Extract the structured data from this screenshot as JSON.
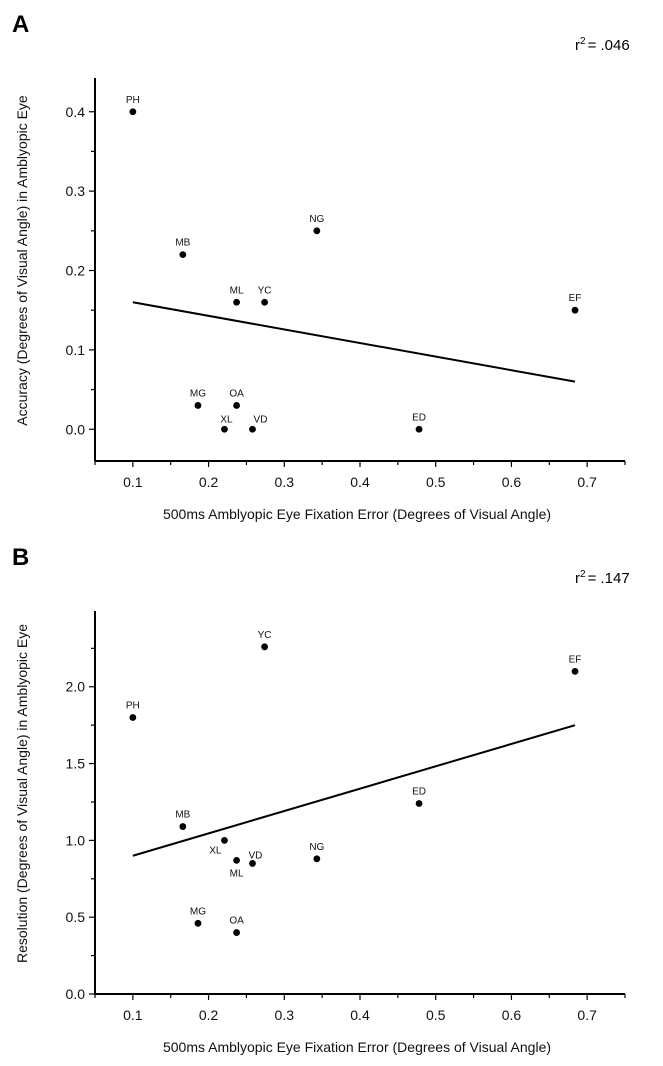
{
  "chart_data": [
    {
      "type": "scatter",
      "panel_label": "A",
      "r2_prefix": "r",
      "r2_exponent": "2",
      "r2_suffix": "= .046",
      "xlabel": "500ms Amblyopic Eye Fixation Error (Degrees of Visual Angle)",
      "ylabel": "Accuracy (Degrees of Visual Angle) in Amblyopic Eye",
      "xlim": [
        0.05,
        0.75
      ],
      "ylim": [
        -0.04,
        0.44
      ],
      "x_ticks": [
        0.1,
        0.2,
        0.3,
        0.4,
        0.5,
        0.6,
        0.7
      ],
      "x_tick_labels": [
        "0.1",
        "0.2",
        "0.3",
        "0.4",
        "0.5",
        "0.6",
        "0.7"
      ],
      "y_ticks": [
        0.0,
        0.1,
        0.2,
        0.3,
        0.4
      ],
      "y_tick_labels": [
        "0.0",
        "0.1",
        "0.2",
        "0.3",
        "0.4"
      ],
      "points": [
        {
          "label": "PH",
          "x": 0.1,
          "y": 0.4
        },
        {
          "label": "MB",
          "x": 0.166,
          "y": 0.22
        },
        {
          "label": "ML",
          "x": 0.237,
          "y": 0.16
        },
        {
          "label": "YC",
          "x": 0.274,
          "y": 0.16
        },
        {
          "label": "NG",
          "x": 0.343,
          "y": 0.25
        },
        {
          "label": "EF",
          "x": 0.684,
          "y": 0.15
        },
        {
          "label": "MG",
          "x": 0.186,
          "y": 0.03
        },
        {
          "label": "OA",
          "x": 0.237,
          "y": 0.03
        },
        {
          "label": "XL",
          "x": 0.221,
          "y": 0.0
        },
        {
          "label": "VD",
          "x": 0.258,
          "y": 0.0
        },
        {
          "label": "ED",
          "x": 0.478,
          "y": 0.0
        }
      ],
      "fit_line": {
        "x": [
          0.1,
          0.684
        ],
        "y": [
          0.16,
          0.06
        ]
      }
    },
    {
      "type": "scatter",
      "panel_label": "B",
      "r2_prefix": "r",
      "r2_exponent": "2",
      "r2_suffix": "= .147",
      "xlabel": "500ms Amblyopic Eye Fixation Error (Degrees of Visual Angle)",
      "ylabel": "Resolution (Degrees of Visual Angle) in Amblyopic Eye",
      "xlim": [
        0.05,
        0.75
      ],
      "ylim": [
        0.0,
        2.48
      ],
      "x_ticks": [
        0.1,
        0.2,
        0.3,
        0.4,
        0.5,
        0.6,
        0.7
      ],
      "x_tick_labels": [
        "0.1",
        "0.2",
        "0.3",
        "0.4",
        "0.5",
        "0.6",
        "0.7"
      ],
      "y_ticks": [
        0.0,
        0.5,
        1.0,
        1.5,
        2.0
      ],
      "y_tick_labels": [
        "0.0",
        "0.5",
        "1.0",
        "1.5",
        "2.0"
      ],
      "points": [
        {
          "label": "YC",
          "x": 0.274,
          "y": 2.26
        },
        {
          "label": "EF",
          "x": 0.684,
          "y": 2.1
        },
        {
          "label": "PH",
          "x": 0.1,
          "y": 1.8
        },
        {
          "label": "ED",
          "x": 0.478,
          "y": 1.24
        },
        {
          "label": "MB",
          "x": 0.166,
          "y": 1.09
        },
        {
          "label": "XL",
          "x": 0.221,
          "y": 1.0
        },
        {
          "label": "NG",
          "x": 0.343,
          "y": 0.88
        },
        {
          "label": "ML",
          "x": 0.237,
          "y": 0.87
        },
        {
          "label": "VD",
          "x": 0.258,
          "y": 0.85
        },
        {
          "label": "MG",
          "x": 0.186,
          "y": 0.46
        },
        {
          "label": "OA",
          "x": 0.237,
          "y": 0.4
        }
      ],
      "fit_line": {
        "x": [
          0.1,
          0.684
        ],
        "y": [
          0.9,
          1.75
        ]
      }
    }
  ]
}
